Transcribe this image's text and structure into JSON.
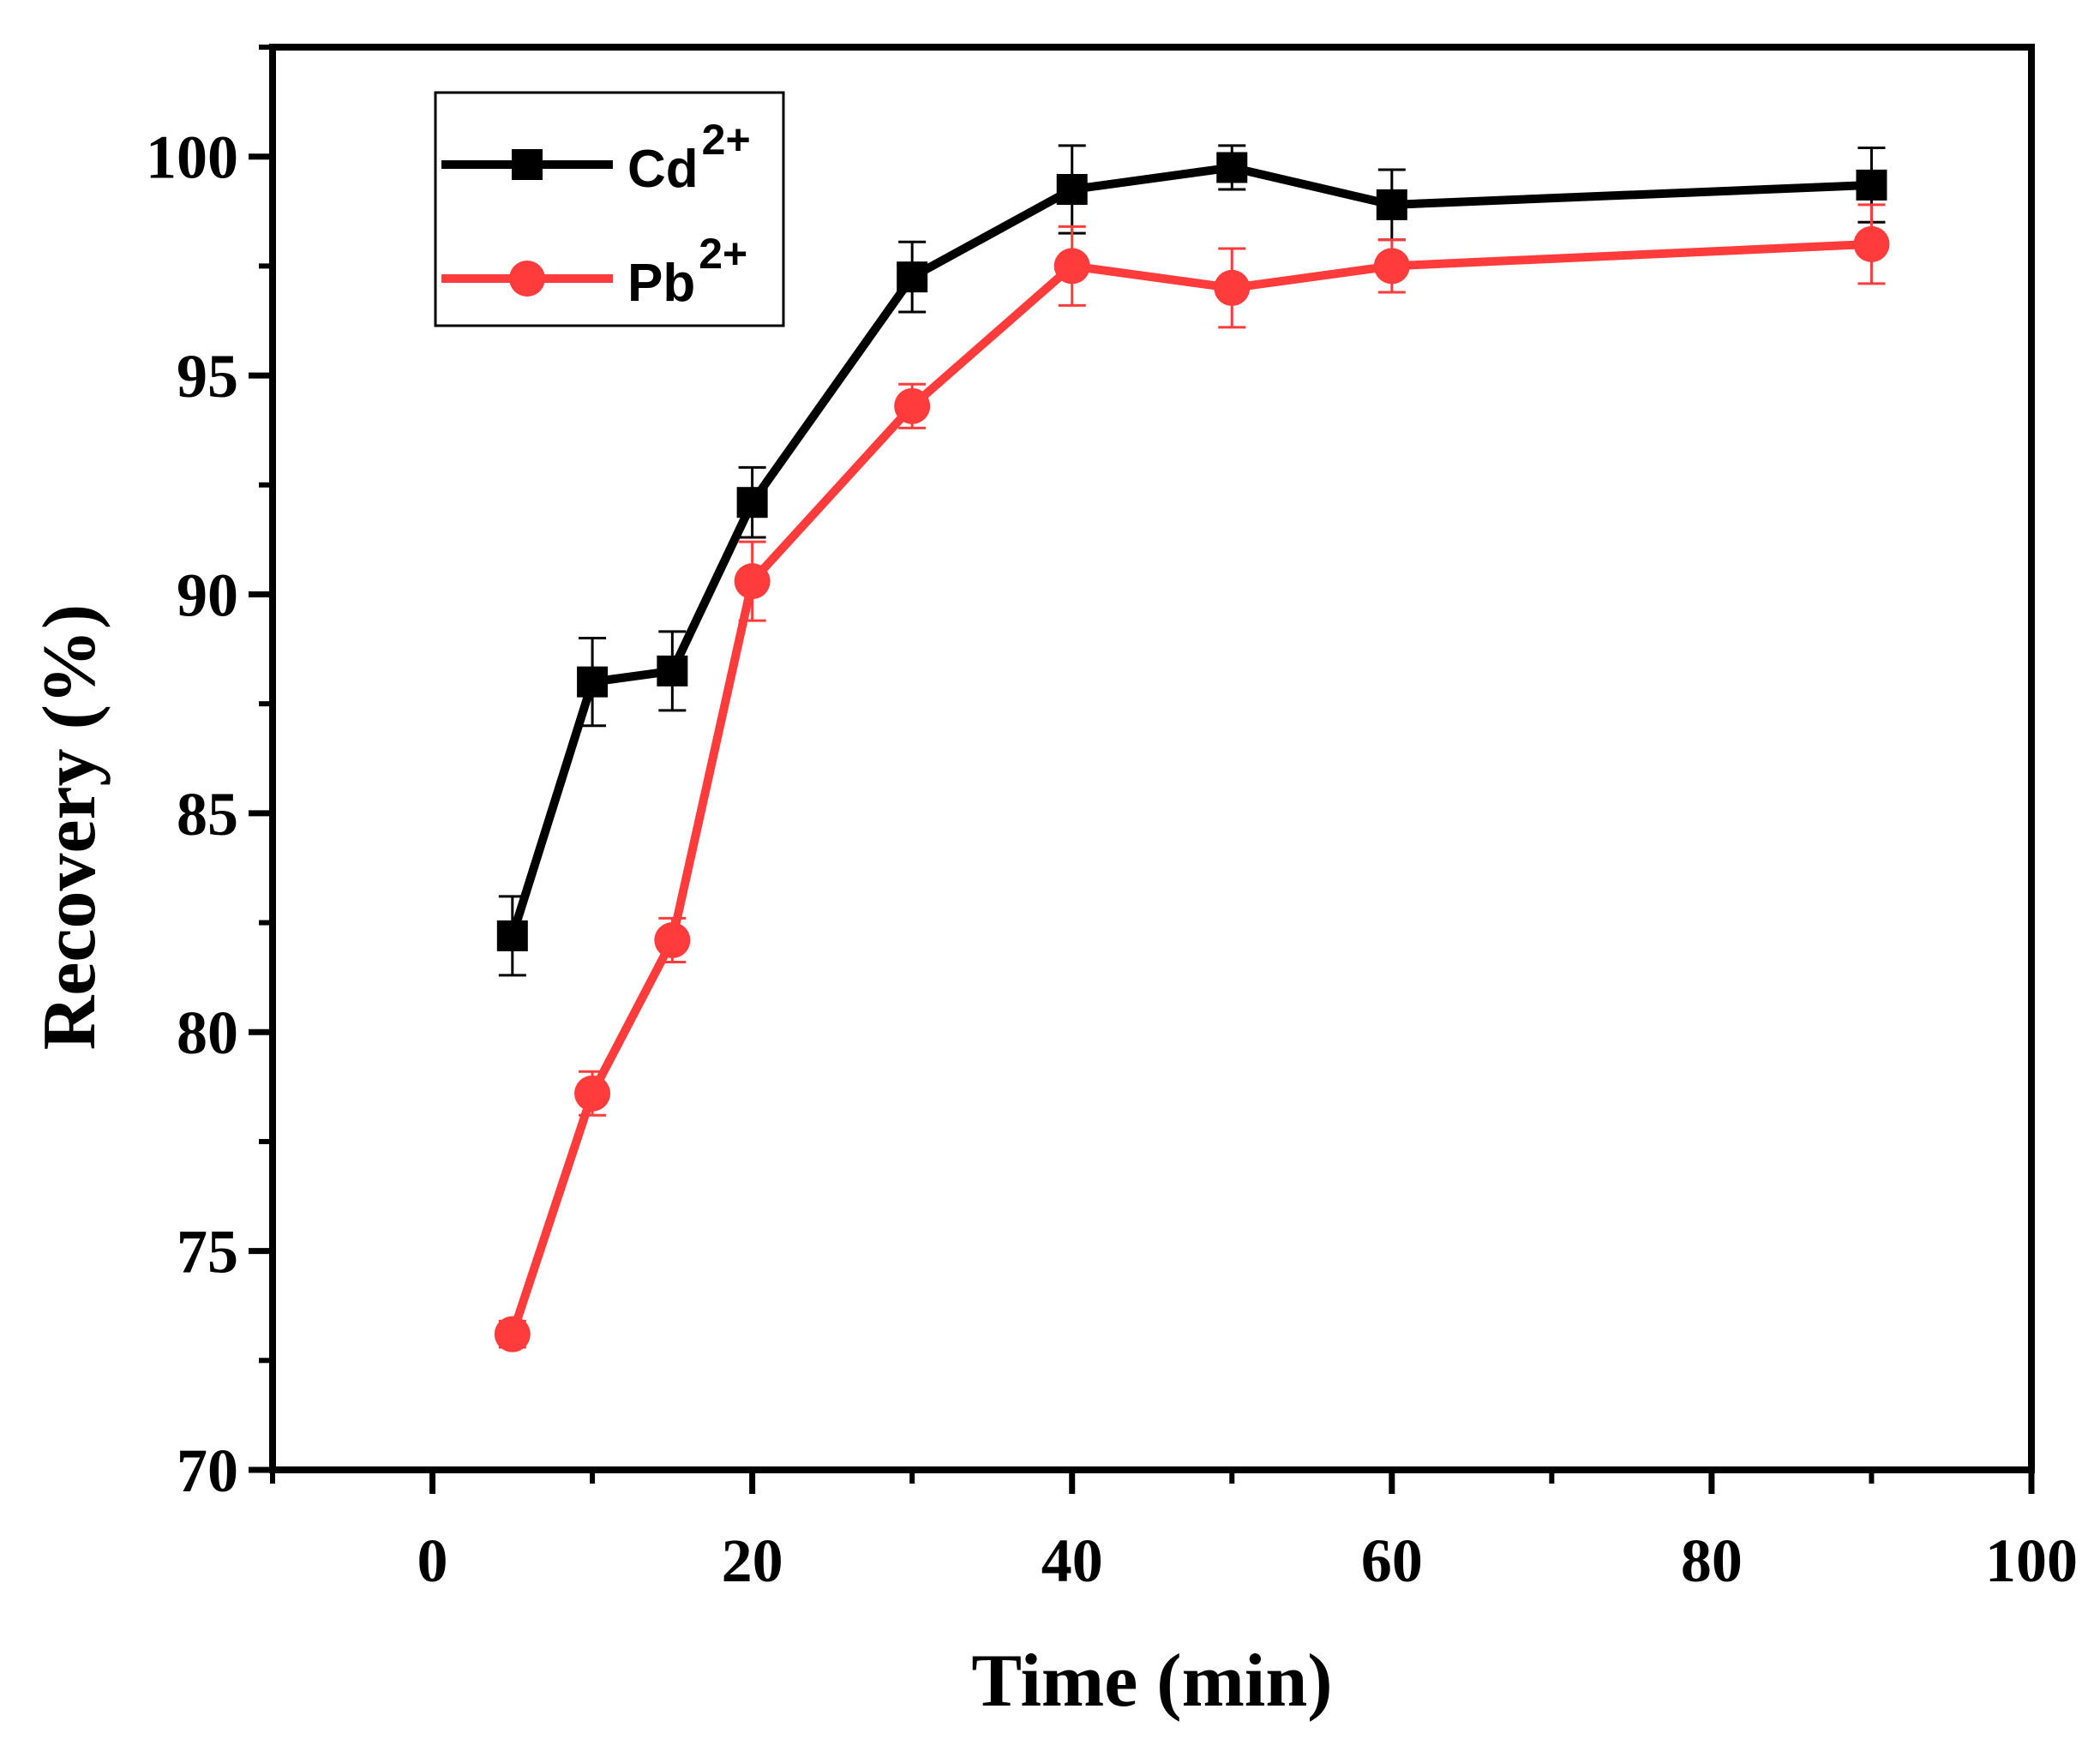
{
  "chart_data": {
    "type": "line",
    "title": "",
    "xlabel": "Time (min)",
    "ylabel": "Recovery (%)",
    "xlim": [
      -10,
      100
    ],
    "ylim": [
      70,
      102.5
    ],
    "x_ticks": [
      0,
      20,
      40,
      60,
      80,
      100
    ],
    "x_tick_labels": [
      "0",
      "20",
      "40",
      "60",
      "80",
      "100"
    ],
    "y_ticks": [
      70,
      75,
      80,
      85,
      90,
      95,
      100
    ],
    "y_tick_labels": [
      "70",
      "75",
      "80",
      "85",
      "90",
      "95",
      "100"
    ],
    "x_minor_ticks": [
      -10,
      10,
      30,
      50,
      70,
      90
    ],
    "y_minor_ticks": [
      72.5,
      77.5,
      82.5,
      87.5,
      92.5,
      97.5,
      102.5
    ],
    "grid": false,
    "legend_position": "top-left",
    "series": [
      {
        "name": "Cd",
        "superscript": "2+",
        "color": "#000000",
        "marker": "square",
        "x": [
          5,
          10,
          15,
          20,
          30,
          40,
          50,
          60,
          90
        ],
        "y": [
          82.2,
          88.0,
          88.25,
          92.1,
          97.25,
          99.25,
          99.75,
          98.9,
          99.35
        ],
        "error": [
          0.9,
          1.0,
          0.9,
          0.8,
          0.8,
          1.0,
          0.5,
          0.8,
          0.85
        ]
      },
      {
        "name": "Pb",
        "superscript": "2+",
        "color": "#ff3b3b",
        "marker": "circle",
        "x": [
          5,
          10,
          15,
          20,
          30,
          40,
          50,
          60,
          90
        ],
        "y": [
          73.1,
          78.6,
          82.1,
          90.3,
          94.3,
          97.5,
          97.0,
          97.5,
          98.0
        ],
        "error": [
          0.3,
          0.5,
          0.5,
          0.9,
          0.5,
          0.9,
          0.9,
          0.6,
          0.9
        ]
      }
    ]
  }
}
